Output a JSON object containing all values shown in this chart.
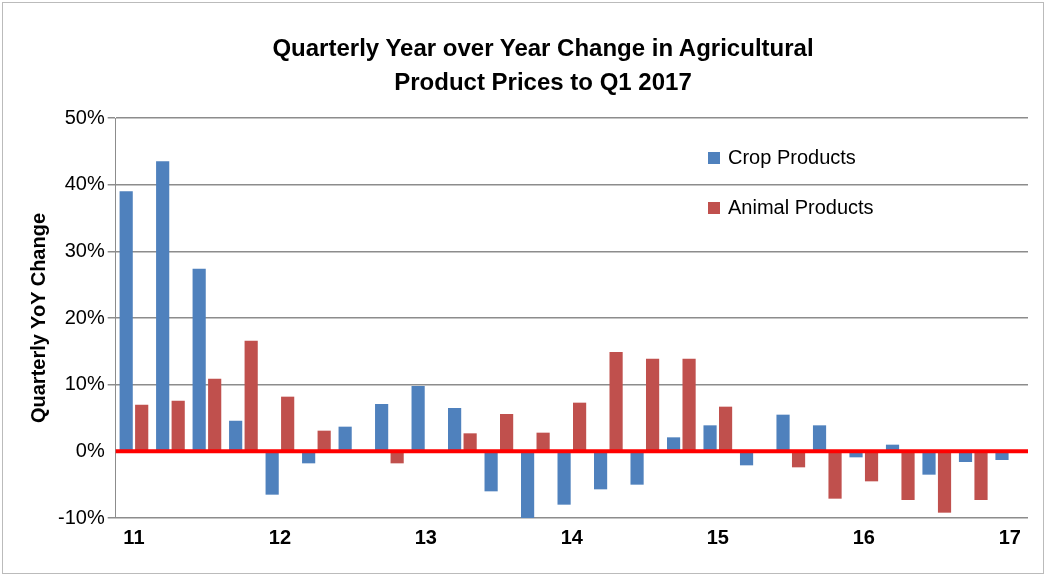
{
  "chart_data": {
    "type": "bar",
    "title": "Quarterly Year over Year Change in Agricultural Product Prices to Q1 2017",
    "ylabel": "Quarterly YoY Change",
    "categories": [
      "11",
      null,
      null,
      null,
      "12",
      null,
      null,
      null,
      "13",
      null,
      null,
      null,
      "14",
      null,
      null,
      null,
      "15",
      null,
      null,
      null,
      "16",
      null,
      null,
      null,
      "17"
    ],
    "series": [
      {
        "name": "Crop Products",
        "color": "#4f81bd",
        "values": [
          39.0,
          43.5,
          27.4,
          4.6,
          -6.5,
          -1.8,
          3.7,
          7.1,
          9.8,
          6.5,
          -6.0,
          -10.0,
          -8.0,
          -5.7,
          -5.0,
          2.1,
          3.9,
          -2.1,
          5.5,
          3.9,
          -0.9,
          1.0,
          -3.5,
          -1.6,
          -1.3
        ]
      },
      {
        "name": "Animal Products",
        "color": "#c0504d",
        "values": [
          7.0,
          7.6,
          10.9,
          16.6,
          8.2,
          3.1,
          null,
          -1.8,
          null,
          2.7,
          5.6,
          2.8,
          7.3,
          14.9,
          13.9,
          13.9,
          6.7,
          null,
          -2.4,
          -7.1,
          -4.5,
          -7.3,
          -9.2,
          -7.3,
          null
        ]
      }
    ],
    "ylim": [
      -10,
      50
    ],
    "yticks": [
      {
        "value": -10,
        "label": "-10%"
      },
      {
        "value": 0,
        "label": "0%"
      },
      {
        "value": 10,
        "label": "10%"
      },
      {
        "value": 20,
        "label": "20%"
      },
      {
        "value": 30,
        "label": "30%"
      },
      {
        "value": 40,
        "label": "40%"
      },
      {
        "value": 50,
        "label": "50%"
      }
    ],
    "grid": "y",
    "legend": "top right",
    "ref_lines": [
      {
        "axis": "y",
        "value": 0,
        "color": "#ff0000"
      }
    ]
  }
}
